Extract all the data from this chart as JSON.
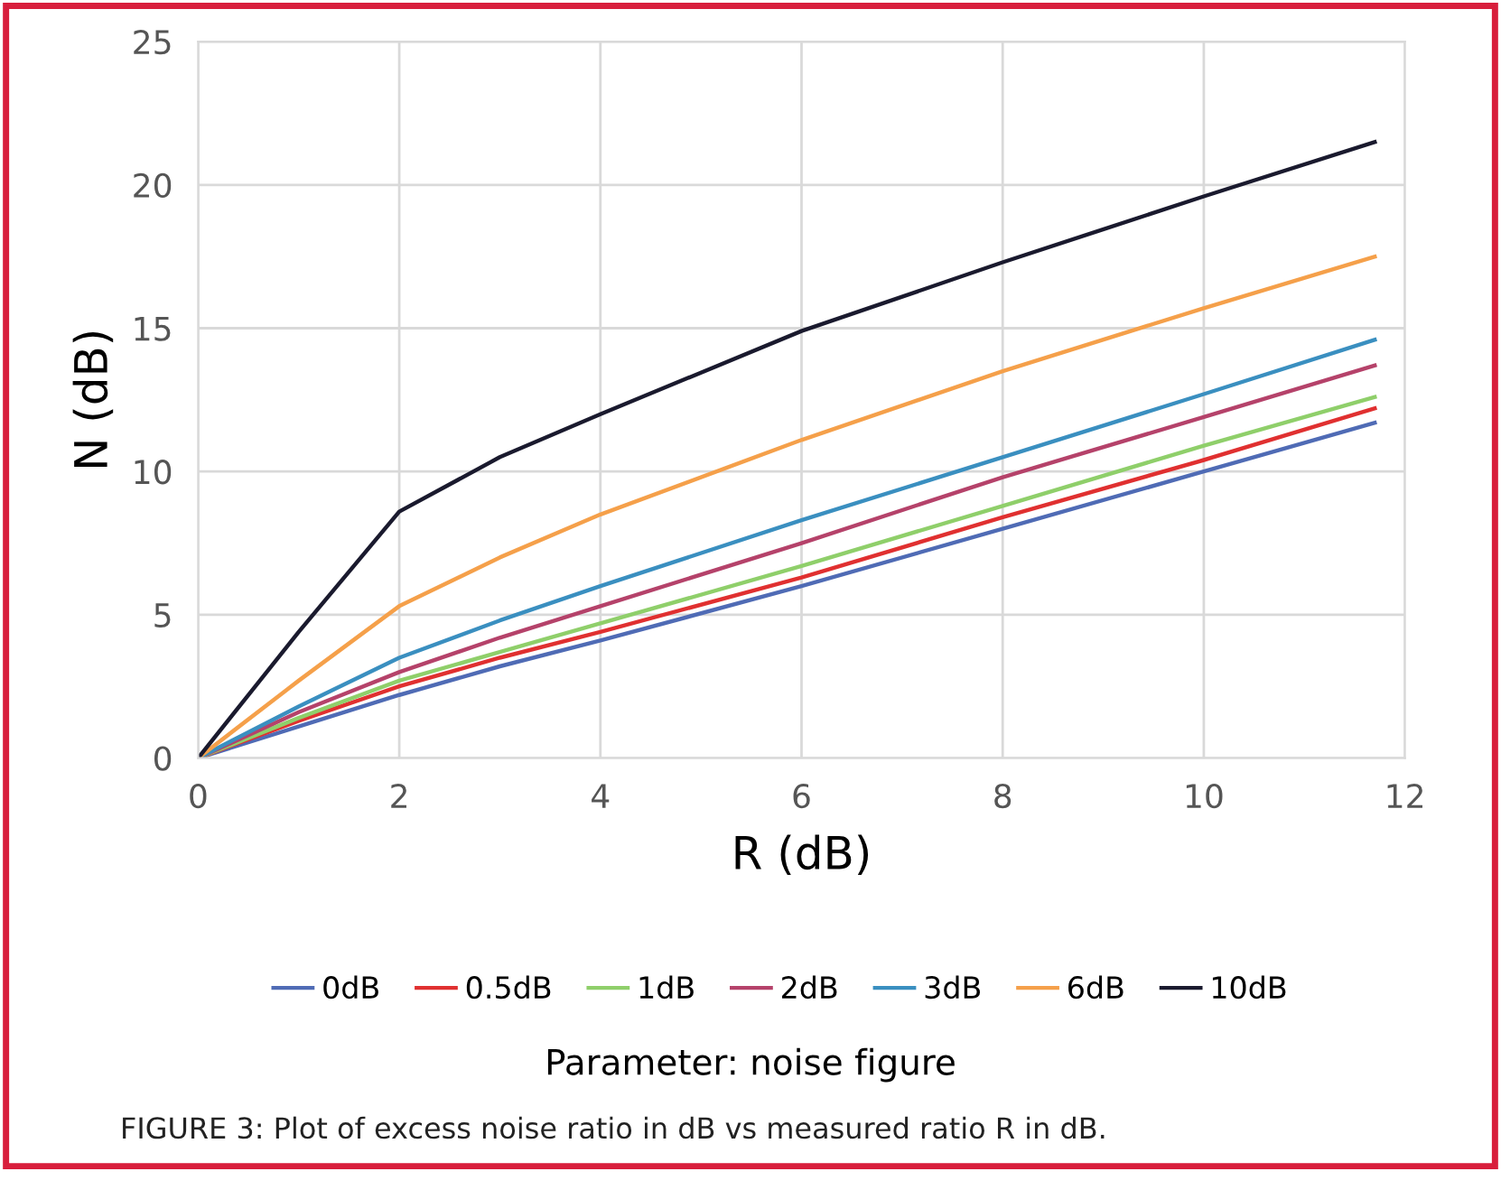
{
  "chart_data": {
    "type": "line",
    "xlabel": "R (dB)",
    "ylabel": "N (dB)",
    "xlim": [
      0,
      12
    ],
    "ylim": [
      0,
      25
    ],
    "xticks": [
      0,
      2,
      4,
      6,
      8,
      10,
      12
    ],
    "yticks": [
      0,
      5,
      10,
      15,
      20,
      25
    ],
    "grid": true,
    "legend": "bottom",
    "marker": "none",
    "line_style": "solid",
    "x": [
      0,
      1,
      2,
      3,
      4,
      6,
      8,
      10,
      11.7
    ],
    "series": [
      {
        "name": "0dB",
        "color": "#4f6bb5",
        "values": [
          0,
          1.1,
          2.2,
          3.2,
          4.1,
          6,
          8,
          10,
          11.7
        ]
      },
      {
        "name": "0.5dB",
        "color": "#e03030",
        "values": [
          0,
          1.3,
          2.5,
          3.5,
          4.4,
          6.3,
          8.4,
          10.4,
          12.2
        ]
      },
      {
        "name": "1dB",
        "color": "#8fcf6a",
        "values": [
          0,
          1.4,
          2.7,
          3.7,
          4.7,
          6.7,
          8.8,
          10.9,
          12.6
        ]
      },
      {
        "name": "2dB",
        "color": "#b5426a",
        "values": [
          0,
          1.6,
          3,
          4.2,
          5.3,
          7.5,
          9.8,
          11.9,
          13.7
        ]
      },
      {
        "name": "3dB",
        "color": "#3a8fc0",
        "values": [
          0,
          1.8,
          3.5,
          4.8,
          6,
          8.3,
          10.5,
          12.7,
          14.6
        ]
      },
      {
        "name": "6dB",
        "color": "#f5a04a",
        "values": [
          0,
          2.7,
          5.3,
          7,
          8.5,
          11.1,
          13.5,
          15.7,
          17.5
        ]
      },
      {
        "name": "10dB",
        "color": "#1a1a2e",
        "values": [
          0,
          4.4,
          8.6,
          10.5,
          12,
          14.9,
          17.3,
          19.6,
          21.5
        ]
      }
    ],
    "annotations": [
      "Parameter: noise figure",
      "FIGURE 3: Plot of excess noise ratio in dB vs measured ratio R in dB."
    ]
  }
}
